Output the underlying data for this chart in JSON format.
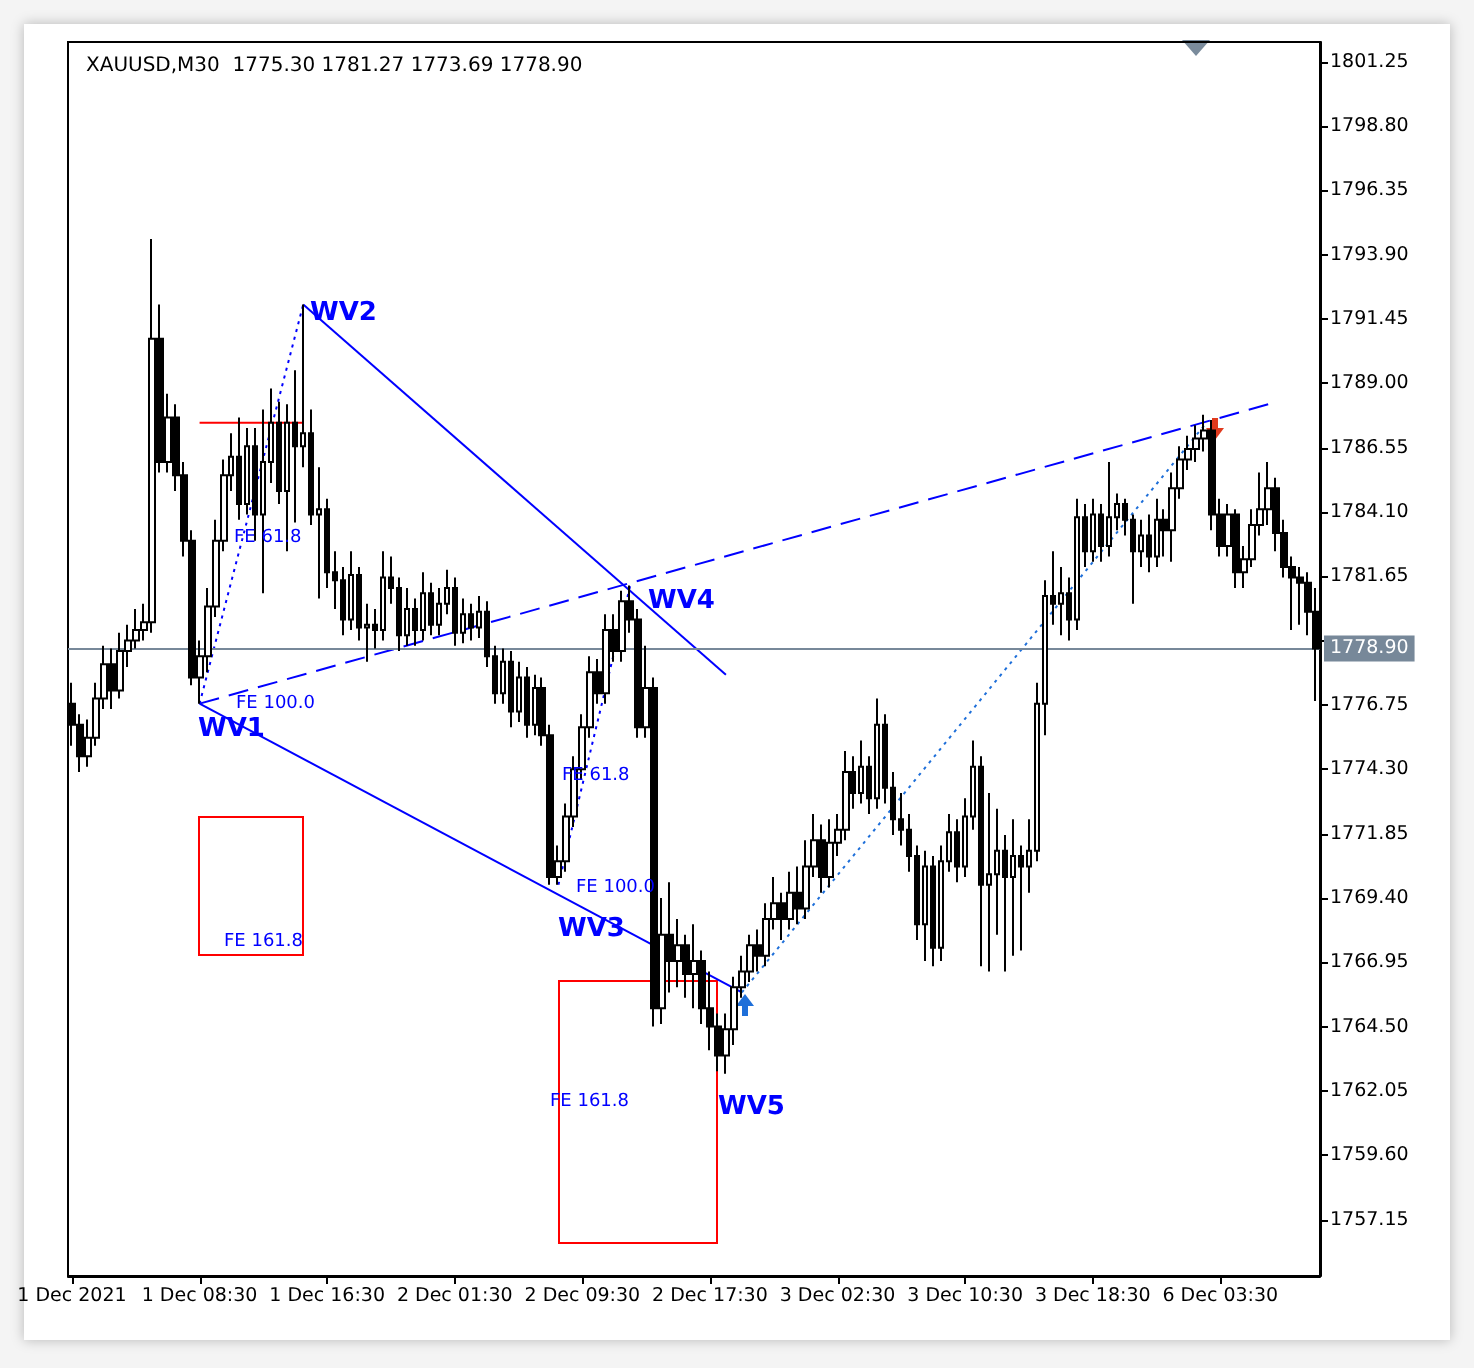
{
  "chart_data": {
    "type": "candlestick",
    "title": "XAUUSD,M30  1775.30 1781.27 1773.69 1778.90",
    "color": "#000000",
    "grid": false,
    "marker": "none",
    "categories": [
      "1 Dec 2021",
      null,
      null,
      null,
      null,
      null,
      null,
      null,
      null,
      null,
      null,
      null,
      null,
      null,
      null,
      null,
      "1 Dec 08:30",
      null,
      null,
      null,
      null,
      null,
      null,
      null,
      null,
      null,
      null,
      null,
      null,
      null,
      null,
      null,
      "1 Dec 16:30",
      null,
      null,
      null,
      null,
      null,
      null,
      null,
      null,
      null,
      null,
      null,
      null,
      null,
      null,
      null,
      "2 Dec 01:30",
      null,
      null,
      null,
      null,
      null,
      null,
      null,
      null,
      null,
      null,
      null,
      null,
      null,
      null,
      null,
      "2 Dec 09:30",
      null,
      null,
      null,
      null,
      null,
      null,
      null,
      null,
      null,
      null,
      null,
      null,
      null,
      null,
      null,
      "2 Dec 17:30",
      null,
      null,
      null,
      null,
      null,
      null,
      null,
      null,
      null,
      null,
      null,
      null,
      null,
      null,
      null,
      "3 Dec 02:30",
      null,
      null,
      null,
      null,
      null,
      null,
      null,
      null,
      null,
      null,
      null,
      null,
      null,
      null,
      null,
      "3 Dec 10:30",
      null,
      null,
      null,
      null,
      null,
      null,
      null,
      null,
      null,
      null,
      null,
      null,
      null,
      null,
      null,
      "3 Dec 18:30",
      null,
      null,
      null,
      null,
      null,
      null,
      null,
      null,
      null,
      null,
      null,
      null,
      null,
      null,
      null,
      "6 Dec 03:30",
      null,
      null,
      null,
      null,
      null,
      null,
      null,
      null,
      null,
      null,
      null,
      null
    ],
    "ohlc": [
      [
        1776.8,
        1777.6,
        1775.2,
        1776.0
      ],
      [
        1776.0,
        1776.4,
        1774.2,
        1774.8
      ],
      [
        1774.8,
        1776.2,
        1774.4,
        1775.5
      ],
      [
        1775.5,
        1777.6,
        1775.2,
        1777.0
      ],
      [
        1777.0,
        1779.0,
        1776.6,
        1778.3
      ],
      [
        1778.3,
        1778.9,
        1776.6,
        1777.3
      ],
      [
        1777.3,
        1779.5,
        1777.0,
        1778.8
      ],
      [
        1778.8,
        1779.8,
        1778.2,
        1779.2
      ],
      [
        1779.2,
        1780.4,
        1778.9,
        1779.6
      ],
      [
        1779.6,
        1780.6,
        1779.2,
        1779.9
      ],
      [
        1779.9,
        1794.5,
        1779.5,
        1790.7
      ],
      [
        1790.7,
        1792.0,
        1785.6,
        1786.0
      ],
      [
        1786.0,
        1788.6,
        1785.6,
        1787.7
      ],
      [
        1787.7,
        1788.2,
        1784.9,
        1785.5
      ],
      [
        1785.5,
        1786.0,
        1782.4,
        1783.0
      ],
      [
        1783.0,
        1783.4,
        1777.5,
        1777.8
      ],
      [
        1777.8,
        1779.2,
        1776.8,
        1778.6
      ],
      [
        1778.6,
        1781.2,
        1778.0,
        1780.5
      ],
      [
        1780.5,
        1783.8,
        1780.1,
        1783.0
      ],
      [
        1783.0,
        1786.1,
        1782.6,
        1785.5
      ],
      [
        1785.5,
        1787.1,
        1784.9,
        1786.2
      ],
      [
        1786.2,
        1787.7,
        1783.8,
        1784.4
      ],
      [
        1784.4,
        1787.3,
        1784.0,
        1786.6
      ],
      [
        1786.6,
        1787.3,
        1783.0,
        1784.0
      ],
      [
        1784.0,
        1788.0,
        1781.0,
        1786.0
      ],
      [
        1786.0,
        1788.8,
        1785.2,
        1787.5
      ],
      [
        1787.5,
        1788.3,
        1784.4,
        1784.9
      ],
      [
        1784.9,
        1788.2,
        1782.6,
        1787.5
      ],
      [
        1787.5,
        1789.5,
        1783.7,
        1786.6
      ],
      [
        1786.6,
        1792.0,
        1785.8,
        1787.1
      ],
      [
        1787.1,
        1788.0,
        1783.6,
        1784.0
      ],
      [
        1784.0,
        1785.8,
        1780.8,
        1784.2
      ],
      [
        1784.2,
        1784.6,
        1781.2,
        1781.8
      ],
      [
        1781.8,
        1782.6,
        1780.4,
        1781.5
      ],
      [
        1781.5,
        1782.0,
        1779.4,
        1780.0
      ],
      [
        1780.0,
        1782.6,
        1779.6,
        1781.7
      ],
      [
        1781.7,
        1782.0,
        1779.2,
        1779.7
      ],
      [
        1779.7,
        1780.6,
        1778.4,
        1779.8
      ],
      [
        1779.8,
        1780.4,
        1778.9,
        1779.6
      ],
      [
        1779.6,
        1782.6,
        1779.2,
        1781.6
      ],
      [
        1781.6,
        1782.4,
        1780.6,
        1781.2
      ],
      [
        1781.2,
        1781.6,
        1778.8,
        1779.4
      ],
      [
        1779.4,
        1781.2,
        1779.0,
        1780.4
      ],
      [
        1780.4,
        1780.8,
        1779.0,
        1779.6
      ],
      [
        1779.6,
        1781.8,
        1779.2,
        1781.0
      ],
      [
        1781.0,
        1781.4,
        1779.4,
        1779.8
      ],
      [
        1779.8,
        1781.2,
        1779.4,
        1780.6
      ],
      [
        1780.6,
        1781.9,
        1780.2,
        1781.2
      ],
      [
        1781.2,
        1781.6,
        1779.0,
        1779.5
      ],
      [
        1779.5,
        1780.8,
        1779.1,
        1780.2
      ],
      [
        1780.2,
        1780.6,
        1779.2,
        1779.7
      ],
      [
        1779.7,
        1780.9,
        1779.3,
        1780.3
      ],
      [
        1780.3,
        1780.7,
        1778.2,
        1778.6
      ],
      [
        1778.6,
        1779.0,
        1776.8,
        1777.2
      ],
      [
        1777.2,
        1778.9,
        1776.8,
        1778.4
      ],
      [
        1778.4,
        1778.8,
        1775.9,
        1776.5
      ],
      [
        1776.5,
        1778.4,
        1776.1,
        1777.8
      ],
      [
        1777.8,
        1778.2,
        1775.5,
        1776.0
      ],
      [
        1776.0,
        1777.9,
        1775.6,
        1777.4
      ],
      [
        1777.4,
        1777.8,
        1775.2,
        1775.6
      ],
      [
        1775.6,
        1776.0,
        1769.9,
        1770.2
      ],
      [
        1770.2,
        1771.4,
        1769.9,
        1770.8
      ],
      [
        1770.8,
        1773.0,
        1770.4,
        1772.5
      ],
      [
        1772.5,
        1774.8,
        1772.1,
        1774.3
      ],
      [
        1774.3,
        1776.4,
        1773.9,
        1775.9
      ],
      [
        1775.9,
        1778.6,
        1775.5,
        1778.0
      ],
      [
        1778.0,
        1778.5,
        1776.8,
        1777.2
      ],
      [
        1777.2,
        1780.2,
        1776.8,
        1779.6
      ],
      [
        1779.6,
        1780.2,
        1778.4,
        1778.8
      ],
      [
        1778.8,
        1781.1,
        1778.4,
        1780.7
      ],
      [
        1780.7,
        1781.3,
        1779.5,
        1780.0
      ],
      [
        1780.0,
        1780.4,
        1775.5,
        1775.9
      ],
      [
        1775.9,
        1779.0,
        1775.5,
        1777.4
      ],
      [
        1777.4,
        1777.8,
        1764.5,
        1765.2
      ],
      [
        1765.2,
        1769.4,
        1764.6,
        1768.0
      ],
      [
        1768.0,
        1770.0,
        1765.8,
        1767.0
      ],
      [
        1767.0,
        1768.6,
        1766.0,
        1767.6
      ],
      [
        1767.6,
        1768.0,
        1765.6,
        1766.5
      ],
      [
        1766.5,
        1768.4,
        1765.2,
        1767.0
      ],
      [
        1767.0,
        1767.4,
        1764.6,
        1765.2
      ],
      [
        1765.2,
        1766.6,
        1763.6,
        1764.5
      ],
      [
        1764.5,
        1765.0,
        1762.8,
        1763.4
      ],
      [
        1763.4,
        1765.0,
        1762.7,
        1764.4
      ],
      [
        1764.4,
        1766.4,
        1763.8,
        1766.0
      ],
      [
        1766.0,
        1767.2,
        1765.6,
        1766.6
      ],
      [
        1766.6,
        1768.0,
        1766.2,
        1767.6
      ],
      [
        1767.6,
        1768.2,
        1766.6,
        1767.2
      ],
      [
        1767.2,
        1769.2,
        1766.8,
        1768.6
      ],
      [
        1768.6,
        1770.2,
        1768.2,
        1769.2
      ],
      [
        1769.2,
        1769.6,
        1767.8,
        1768.6
      ],
      [
        1768.6,
        1770.4,
        1768.2,
        1769.6
      ],
      [
        1769.6,
        1770.6,
        1768.4,
        1769.0
      ],
      [
        1769.0,
        1771.6,
        1768.6,
        1770.6
      ],
      [
        1770.6,
        1772.6,
        1770.2,
        1771.6
      ],
      [
        1771.6,
        1772.2,
        1769.6,
        1770.2
      ],
      [
        1770.2,
        1772.4,
        1769.8,
        1771.5
      ],
      [
        1771.5,
        1772.6,
        1771.0,
        1772.0
      ],
      [
        1772.0,
        1775.0,
        1771.6,
        1774.2
      ],
      [
        1774.2,
        1774.8,
        1772.8,
        1773.4
      ],
      [
        1773.4,
        1775.4,
        1773.0,
        1774.4
      ],
      [
        1774.4,
        1774.8,
        1772.6,
        1773.2
      ],
      [
        1773.2,
        1777.0,
        1772.8,
        1776.0
      ],
      [
        1776.0,
        1776.4,
        1773.0,
        1773.6
      ],
      [
        1773.6,
        1774.2,
        1771.8,
        1772.4
      ],
      [
        1772.4,
        1773.4,
        1771.4,
        1772.0
      ],
      [
        1772.0,
        1772.6,
        1770.4,
        1771.0
      ],
      [
        1771.0,
        1771.4,
        1767.8,
        1768.4
      ],
      [
        1768.4,
        1771.2,
        1767.0,
        1770.6
      ],
      [
        1770.6,
        1771.0,
        1766.8,
        1767.5
      ],
      [
        1767.5,
        1771.4,
        1767.0,
        1770.8
      ],
      [
        1770.8,
        1772.6,
        1770.4,
        1771.9
      ],
      [
        1771.9,
        1772.4,
        1770.0,
        1770.6
      ],
      [
        1770.6,
        1773.2,
        1770.2,
        1772.5
      ],
      [
        1772.5,
        1775.4,
        1772.0,
        1774.4
      ],
      [
        1774.4,
        1774.8,
        1766.8,
        1769.9
      ],
      [
        1769.9,
        1773.4,
        1766.6,
        1770.3
      ],
      [
        1770.3,
        1772.8,
        1768.0,
        1771.2
      ],
      [
        1771.2,
        1771.8,
        1766.6,
        1770.2
      ],
      [
        1770.2,
        1772.4,
        1767.2,
        1771.0
      ],
      [
        1771.0,
        1771.4,
        1767.4,
        1770.6
      ],
      [
        1770.6,
        1772.4,
        1769.6,
        1771.2
      ],
      [
        1771.2,
        1777.6,
        1770.8,
        1776.8
      ],
      [
        1776.8,
        1781.5,
        1775.6,
        1780.9
      ],
      [
        1780.9,
        1782.6,
        1779.8,
        1780.6
      ],
      [
        1780.6,
        1782.0,
        1779.4,
        1781.0
      ],
      [
        1781.0,
        1781.6,
        1779.2,
        1780.0
      ],
      [
        1780.0,
        1784.6,
        1779.6,
        1783.9
      ],
      [
        1783.9,
        1784.4,
        1782.0,
        1782.6
      ],
      [
        1782.6,
        1784.6,
        1782.2,
        1784.0
      ],
      [
        1784.0,
        1784.4,
        1782.2,
        1782.8
      ],
      [
        1782.8,
        1786.0,
        1782.4,
        1783.9
      ],
      [
        1783.9,
        1784.8,
        1783.4,
        1784.4
      ],
      [
        1784.4,
        1784.6,
        1783.2,
        1783.8
      ],
      [
        1783.8,
        1784.0,
        1780.6,
        1782.6
      ],
      [
        1782.6,
        1783.8,
        1782.0,
        1783.2
      ],
      [
        1783.2,
        1784.0,
        1781.8,
        1782.4
      ],
      [
        1782.4,
        1784.6,
        1782.0,
        1783.8
      ],
      [
        1783.8,
        1784.2,
        1782.4,
        1783.4
      ],
      [
        1783.4,
        1785.6,
        1782.2,
        1785.0
      ],
      [
        1785.0,
        1786.6,
        1784.6,
        1786.1
      ],
      [
        1786.1,
        1787.0,
        1785.7,
        1786.5
      ],
      [
        1786.5,
        1787.4,
        1786.0,
        1786.9
      ],
      [
        1786.9,
        1787.8,
        1786.4,
        1787.2
      ],
      [
        1787.2,
        1787.6,
        1783.4,
        1784.0
      ],
      [
        1784.0,
        1784.6,
        1782.4,
        1782.8
      ],
      [
        1782.8,
        1784.4,
        1782.4,
        1784.0
      ],
      [
        1784.0,
        1784.2,
        1781.2,
        1781.8
      ],
      [
        1781.8,
        1782.8,
        1781.2,
        1782.3
      ],
      [
        1782.3,
        1784.2,
        1782.0,
        1783.6
      ],
      [
        1783.6,
        1785.6,
        1783.2,
        1784.2
      ],
      [
        1784.2,
        1786.0,
        1783.6,
        1785.0
      ],
      [
        1785.0,
        1785.4,
        1782.6,
        1783.3
      ],
      [
        1783.3,
        1783.8,
        1781.6,
        1782.0
      ],
      [
        1782.0,
        1782.4,
        1779.6,
        1781.6
      ],
      [
        1781.6,
        1782.0,
        1779.8,
        1781.4
      ],
      [
        1781.4,
        1781.8,
        1779.4,
        1780.3
      ],
      [
        1780.3,
        1781.2,
        1776.9,
        1778.9
      ]
    ],
    "series": [
      {
        "type": "line",
        "color": "#0000ff",
        "line_style": "solid",
        "values": [
          null,
          null,
          null,
          null,
          null,
          null,
          null,
          null,
          null,
          null,
          null,
          null,
          null,
          null,
          null,
          null,
          1776.8,
          null,
          null,
          null,
          null,
          null,
          null,
          null,
          null,
          null,
          null,
          null,
          null,
          null,
          null,
          null,
          null,
          null,
          null,
          null,
          null,
          null,
          null,
          null,
          null,
          null,
          null,
          null,
          null,
          null,
          null,
          null,
          null,
          null,
          null,
          null,
          null,
          null,
          null,
          null,
          null,
          null,
          null,
          null,
          null,
          null,
          null,
          null,
          null,
          null,
          null,
          null,
          null,
          null,
          null,
          null,
          null,
          null,
          null,
          null,
          null,
          null,
          null,
          null,
          null,
          null,
          null,
          null,
          1765.8,
          null,
          null,
          null,
          null,
          null,
          null,
          null,
          null,
          null,
          null,
          null,
          null,
          null,
          null,
          null,
          null,
          null,
          null,
          null,
          null,
          null,
          null,
          null,
          null,
          null,
          null,
          null,
          null,
          null,
          null,
          null,
          null,
          null,
          null,
          null,
          null,
          null,
          null,
          null,
          null,
          null,
          null,
          null,
          null,
          null,
          null,
          null,
          null,
          null,
          null,
          null,
          null,
          null,
          null,
          null,
          null,
          null,
          null,
          null,
          null,
          null,
          null,
          null,
          null,
          null,
          null,
          null,
          null,
          null,
          null,
          null,
          null
        ]
      },
      {
        "type": "line",
        "color": "#0000ff",
        "line_style": "solid",
        "values": [
          null,
          null,
          null,
          null,
          null,
          null,
          null,
          null,
          null,
          null,
          null,
          null,
          null,
          null,
          null,
          null,
          null,
          null,
          null,
          null,
          null,
          null,
          null,
          null,
          null,
          null,
          null,
          null,
          null,
          1792.0,
          null,
          null,
          null,
          null,
          null,
          null,
          null,
          null,
          null,
          null,
          null,
          null,
          null,
          null,
          null,
          null,
          null,
          null,
          null,
          null,
          null,
          null,
          null,
          null,
          null,
          null,
          null,
          null,
          null,
          null,
          null,
          null,
          null,
          null,
          null,
          null,
          null,
          null,
          null,
          null,
          null,
          null,
          null,
          null,
          null,
          null,
          null,
          null,
          null,
          null,
          null,
          null,
          1777.9,
          null,
          null,
          null,
          null,
          null,
          null,
          null,
          null,
          null,
          null,
          null,
          null,
          null,
          null,
          null,
          null,
          null,
          null,
          null,
          null,
          null,
          null,
          null,
          null,
          null,
          null,
          null,
          null,
          null,
          null,
          null,
          null,
          null,
          null,
          null,
          null,
          null,
          null,
          null,
          null,
          null,
          null,
          null,
          null,
          null,
          null,
          null,
          null,
          null,
          null,
          null,
          null,
          null,
          null,
          null,
          null,
          null,
          null,
          null,
          null,
          null,
          null,
          null,
          null,
          null,
          null,
          null,
          null,
          null,
          null,
          null,
          null,
          null,
          null
        ]
      },
      {
        "type": "line",
        "color": "#0000ff",
        "line_style": "dashed",
        "values": [
          null,
          null,
          null,
          null,
          null,
          null,
          null,
          null,
          null,
          null,
          null,
          null,
          null,
          null,
          null,
          null,
          1776.8,
          null,
          null,
          null,
          null,
          null,
          null,
          null,
          null,
          null,
          null,
          null,
          null,
          null,
          null,
          null,
          null,
          null,
          null,
          null,
          null,
          null,
          null,
          null,
          null,
          null,
          null,
          null,
          null,
          null,
          null,
          null,
          null,
          null,
          null,
          null,
          null,
          null,
          null,
          null,
          null,
          null,
          null,
          null,
          null,
          null,
          null,
          null,
          null,
          null,
          null,
          null,
          null,
          null,
          null,
          null,
          null,
          null,
          null,
          null,
          null,
          null,
          null,
          null,
          null,
          null,
          null,
          null,
          null,
          null,
          null,
          null,
          null,
          null,
          null,
          null,
          null,
          null,
          null,
          null,
          null,
          null,
          null,
          null,
          null,
          null,
          null,
          null,
          null,
          null,
          null,
          null,
          null,
          null,
          null,
          null,
          null,
          null,
          null,
          null,
          null,
          null,
          null,
          null,
          null,
          null,
          null,
          null,
          null,
          null,
          null,
          null,
          null,
          null,
          null,
          null,
          null,
          null,
          null,
          null,
          null,
          null,
          null,
          null,
          null,
          null,
          null,
          null,
          null,
          null,
          null,
          null,
          null,
          null,
          1788.2,
          null,
          null,
          null,
          null,
          null,
          null
        ]
      },
      {
        "type": "line",
        "color": "#0000ff",
        "line_style": "dotted",
        "values": [
          null,
          null,
          null,
          null,
          null,
          null,
          null,
          null,
          null,
          null,
          null,
          null,
          null,
          null,
          null,
          null,
          1776.8,
          null,
          null,
          null,
          null,
          null,
          null,
          null,
          null,
          null,
          null,
          null,
          null,
          1792.0,
          null,
          null,
          null,
          null,
          null,
          null,
          null,
          null,
          null,
          null,
          null,
          null,
          null,
          null,
          null,
          null,
          null,
          null,
          null,
          null,
          null,
          null,
          null,
          null,
          null,
          null,
          null,
          null,
          null,
          null,
          null,
          null,
          null,
          null,
          null,
          null,
          null,
          null,
          null,
          null,
          null,
          null,
          null,
          null,
          null,
          null,
          null,
          null,
          null,
          null,
          null,
          null,
          null,
          null,
          null,
          null,
          null,
          null,
          null,
          null,
          null,
          null,
          null,
          null,
          null,
          null,
          null,
          null,
          null,
          null,
          null,
          null,
          null,
          null,
          null,
          null,
          null,
          null,
          null,
          null,
          null,
          null,
          null,
          null,
          null,
          null,
          null,
          null,
          null,
          null,
          null,
          null,
          null,
          null,
          null,
          null,
          null,
          null,
          null,
          null,
          null,
          null,
          null,
          null,
          null,
          null,
          null,
          null,
          null,
          null,
          null,
          null,
          null,
          null,
          null,
          null,
          null,
          null,
          null,
          null,
          null,
          null,
          null,
          null,
          null,
          null,
          null
        ]
      },
      {
        "type": "line",
        "color": "#0000ff",
        "line_style": "dotted",
        "values": [
          null,
          null,
          null,
          null,
          null,
          null,
          null,
          null,
          null,
          null,
          null,
          null,
          null,
          null,
          null,
          null,
          null,
          null,
          null,
          null,
          null,
          null,
          null,
          null,
          null,
          null,
          null,
          null,
          null,
          null,
          null,
          null,
          null,
          null,
          null,
          null,
          null,
          null,
          null,
          null,
          null,
          null,
          null,
          null,
          null,
          null,
          null,
          null,
          null,
          null,
          null,
          null,
          null,
          null,
          null,
          null,
          null,
          null,
          null,
          null,
          null,
          1769.9,
          null,
          null,
          null,
          null,
          null,
          null,
          null,
          null,
          1781.3,
          null,
          null,
          null,
          null,
          null,
          null,
          null,
          null,
          null,
          null,
          null,
          null,
          null,
          null,
          null,
          null,
          null,
          null,
          null,
          null,
          null,
          null,
          null,
          null,
          null,
          null,
          null,
          null,
          null,
          null,
          null,
          null,
          null,
          null,
          null,
          null,
          null,
          null,
          null,
          null,
          null,
          null,
          null,
          null,
          null,
          null,
          null,
          null,
          null,
          null,
          null,
          null,
          null,
          null,
          null,
          null,
          null,
          null,
          null,
          null,
          null,
          null,
          null,
          null,
          null,
          null,
          null,
          null,
          null,
          null,
          null,
          null,
          null,
          null,
          null,
          null,
          null,
          null,
          null,
          null,
          null,
          null,
          null,
          null,
          null,
          null
        ]
      },
      {
        "type": "line",
        "color": "#1e6fd9",
        "line_style": "dotted",
        "values": [
          null,
          null,
          null,
          null,
          null,
          null,
          null,
          null,
          null,
          null,
          null,
          null,
          null,
          null,
          null,
          null,
          null,
          null,
          null,
          null,
          null,
          null,
          null,
          null,
          null,
          null,
          null,
          null,
          null,
          null,
          null,
          null,
          null,
          null,
          null,
          null,
          null,
          null,
          null,
          null,
          null,
          null,
          null,
          null,
          null,
          null,
          null,
          null,
          null,
          null,
          null,
          null,
          null,
          null,
          null,
          null,
          null,
          null,
          null,
          null,
          null,
          null,
          null,
          null,
          null,
          null,
          null,
          null,
          null,
          null,
          null,
          null,
          null,
          null,
          null,
          null,
          null,
          null,
          null,
          null,
          null,
          null,
          null,
          null,
          1765.8,
          null,
          null,
          null,
          null,
          null,
          null,
          null,
          null,
          null,
          null,
          null,
          null,
          null,
          null,
          null,
          null,
          null,
          null,
          null,
          null,
          null,
          null,
          null,
          null,
          null,
          null,
          null,
          null,
          null,
          null,
          null,
          null,
          null,
          null,
          null,
          null,
          null,
          null,
          null,
          null,
          null,
          null,
          null,
          null,
          null,
          null,
          null,
          null,
          null,
          null,
          null,
          null,
          null,
          null,
          null,
          null,
          null,
          1787.4,
          null,
          null,
          null,
          null,
          null,
          null,
          null,
          null,
          null,
          null,
          null,
          null,
          null,
          null
        ]
      },
      {
        "type": "line",
        "color": "#ff0000",
        "line_style": "solid",
        "values": [
          null,
          null,
          null,
          null,
          null,
          null,
          null,
          null,
          null,
          null,
          null,
          null,
          null,
          null,
          null,
          null,
          1787.5,
          null,
          null,
          null,
          null,
          null,
          null,
          null,
          null,
          null,
          null,
          null,
          null,
          1787.5,
          null,
          null,
          null,
          null,
          null,
          null,
          null,
          null,
          null,
          null,
          null,
          null,
          null,
          null,
          null,
          null,
          null,
          null,
          null,
          null,
          null,
          null,
          null,
          null,
          null,
          null,
          null,
          null,
          null,
          null,
          null,
          null,
          null,
          null,
          null,
          null,
          null,
          null,
          null,
          null,
          null,
          null,
          null,
          null,
          null,
          null,
          null,
          null,
          null,
          null,
          null,
          null,
          null,
          null,
          null,
          null,
          null,
          null,
          null,
          null,
          null,
          null,
          null,
          null,
          null,
          null,
          null,
          null,
          null,
          null,
          null,
          null,
          null,
          null,
          null,
          null,
          null,
          null,
          null,
          null,
          null,
          null,
          null,
          null,
          null,
          null,
          null,
          null,
          null,
          null,
          null,
          null,
          null,
          null,
          null,
          null,
          null,
          null,
          null,
          null,
          null,
          null,
          null,
          null,
          null,
          null,
          null,
          null,
          null,
          null,
          null,
          null,
          null,
          null,
          null,
          null,
          null,
          null,
          null,
          null,
          null,
          null,
          null,
          null,
          null,
          null,
          null
        ]
      }
    ],
    "annotations": [
      "WV1",
      "WV2",
      "WV3",
      "WV4",
      "WV5",
      "FE 61.8",
      "FE 100.0",
      "FE 161.8",
      "FE 61.8",
      "FE 100.0",
      "FE 161.8"
    ],
    "ylim": [
      1755.0,
      1802.0
    ],
    "yticks": [
      1757.15,
      {
        "value": 1759.6,
        "label": "1759.60"
      },
      1762.05,
      {
        "value": 1764.5,
        "label": "1764.50"
      },
      1766.95,
      {
        "value": 1769.4,
        "label": "1769.40"
      },
      1771.85,
      {
        "value": 1774.3,
        "label": "1774.30"
      },
      1776.75,
      {
        "value": 1779.2,
        "label": null
      },
      1781.65,
      {
        "value": 1784.1,
        "label": "1784.10"
      },
      1786.55,
      {
        "value": 1789,
        "label": "1789.00"
      },
      1791.45,
      {
        "value": 1793.9,
        "label": "1793.90"
      },
      1796.35,
      {
        "value": 1798.8,
        "label": "1798.80"
      },
      1801.25
    ],
    "ref_lines": [
      {
        "axis": "y",
        "value": 1778.9,
        "label": "1778.90",
        "color": "#778899"
      }
    ]
  }
}
